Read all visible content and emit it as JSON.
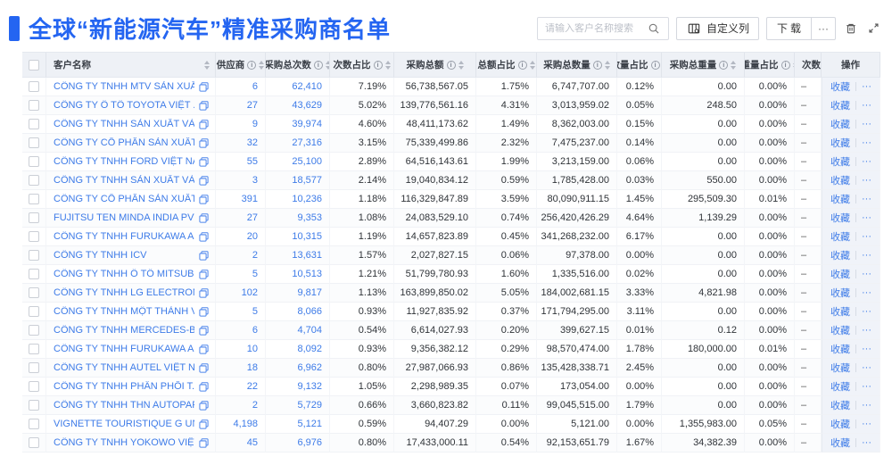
{
  "header": {
    "title": "全球“新能源汽车”精准采购商名单",
    "search_placeholder": "请输入客户名称搜索",
    "customize_columns_label": "自定义列",
    "download_label": "下载",
    "more_label": "···"
  },
  "colors": {
    "accent": "#2465F1",
    "link": "#3D7BE8",
    "header_bg": "#EEF1F6"
  },
  "table": {
    "columns": [
      {
        "key": "name",
        "label": "客户名称",
        "info": false,
        "sort": true
      },
      {
        "key": "supplier",
        "label": "供应商",
        "info": true,
        "sort": true
      },
      {
        "key": "purchase_count",
        "label": "采购总次数",
        "info": true,
        "sort": true
      },
      {
        "key": "count_pct",
        "label": "次数占比",
        "info": true,
        "sort": true
      },
      {
        "key": "amount",
        "label": "采购总额",
        "info": true,
        "sort": true
      },
      {
        "key": "amount_pct",
        "label": "总额占比",
        "info": true,
        "sort": true
      },
      {
        "key": "quantity",
        "label": "采购总数量",
        "info": true,
        "sort": true
      },
      {
        "key": "quantity_pct",
        "label": "数量占比",
        "info": true,
        "sort": true
      },
      {
        "key": "weight",
        "label": "采购总重量",
        "info": true,
        "sort": true
      },
      {
        "key": "weight_pct",
        "label": "重量占比",
        "info": true,
        "sort": true
      },
      {
        "key": "trend",
        "label": "次数趋势",
        "info": false,
        "sort": false
      },
      {
        "key": "actions",
        "label": "操作",
        "info": false,
        "sort": false
      }
    ],
    "actions": {
      "favorite": "收藏",
      "more": "···"
    },
    "rows": [
      {
        "name": "CÔNG TY TNHH MTV SẢN XUẤ...",
        "supplier": "6",
        "purchase_count": "62,410",
        "count_pct": "7.19%",
        "amount": "56,738,567.05",
        "amount_pct": "1.75%",
        "quantity": "6,747,707.00",
        "quantity_pct": "0.12%",
        "weight": "0.00",
        "weight_pct": "0.00%",
        "trend": "–"
      },
      {
        "name": "CÔNG TY Ô TÔ TOYOTA VIỆT ...",
        "supplier": "27",
        "purchase_count": "43,629",
        "count_pct": "5.02%",
        "amount": "139,776,561.16",
        "amount_pct": "4.31%",
        "quantity": "3,013,959.02",
        "quantity_pct": "0.05%",
        "weight": "248.50",
        "weight_pct": "0.00%",
        "trend": "–"
      },
      {
        "name": "CÔNG TY TNHH SẢN XUẤT VÀ ...",
        "supplier": "9",
        "purchase_count": "39,974",
        "count_pct": "4.60%",
        "amount": "48,411,173.62",
        "amount_pct": "1.49%",
        "quantity": "8,362,003.00",
        "quantity_pct": "0.15%",
        "weight": "0.00",
        "weight_pct": "0.00%",
        "trend": "–"
      },
      {
        "name": "CÔNG TY CỔ PHẦN SẢN XUẤT...",
        "supplier": "32",
        "purchase_count": "27,316",
        "count_pct": "3.15%",
        "amount": "75,339,499.86",
        "amount_pct": "2.32%",
        "quantity": "7,475,237.00",
        "quantity_pct": "0.14%",
        "weight": "0.00",
        "weight_pct": "0.00%",
        "trend": "–"
      },
      {
        "name": "CÔNG TY TNHH FORD VIỆT NAM",
        "supplier": "55",
        "purchase_count": "25,100",
        "count_pct": "2.89%",
        "amount": "64,516,143.61",
        "amount_pct": "1.99%",
        "quantity": "3,213,159.00",
        "quantity_pct": "0.06%",
        "weight": "0.00",
        "weight_pct": "0.00%",
        "trend": "–"
      },
      {
        "name": "CÔNG TY TNHH SẢN XUẤT VÀ ...",
        "supplier": "3",
        "purchase_count": "18,577",
        "count_pct": "2.14%",
        "amount": "19,040,834.12",
        "amount_pct": "0.59%",
        "quantity": "1,785,428.00",
        "quantity_pct": "0.03%",
        "weight": "550.00",
        "weight_pct": "0.00%",
        "trend": "–"
      },
      {
        "name": "CÔNG TY CỔ PHẦN SẢN XUẤT...",
        "supplier": "391",
        "purchase_count": "10,236",
        "count_pct": "1.18%",
        "amount": "116,329,847.89",
        "amount_pct": "3.59%",
        "quantity": "80,090,911.15",
        "quantity_pct": "1.45%",
        "weight": "295,509.30",
        "weight_pct": "0.01%",
        "trend": "–"
      },
      {
        "name": "FUJITSU TEN MINDA INDIA PVT...",
        "supplier": "27",
        "purchase_count": "9,353",
        "count_pct": "1.08%",
        "amount": "24,083,529.10",
        "amount_pct": "0.74%",
        "quantity": "256,420,426.29",
        "quantity_pct": "4.64%",
        "weight": "1,139.29",
        "weight_pct": "0.00%",
        "trend": "–"
      },
      {
        "name": "CÔNG TY TNHH FURUKAWA A...",
        "supplier": "20",
        "purchase_count": "10,315",
        "count_pct": "1.19%",
        "amount": "14,657,823.89",
        "amount_pct": "0.45%",
        "quantity": "341,268,232.00",
        "quantity_pct": "6.17%",
        "weight": "0.00",
        "weight_pct": "0.00%",
        "trend": "–"
      },
      {
        "name": "CÔNG TY TNHH ICV",
        "supplier": "2",
        "purchase_count": "13,631",
        "count_pct": "1.57%",
        "amount": "2,027,827.15",
        "amount_pct": "0.06%",
        "quantity": "97,378.00",
        "quantity_pct": "0.00%",
        "weight": "0.00",
        "weight_pct": "0.00%",
        "trend": "–"
      },
      {
        "name": "CÔNG TY TNHH Ô TÔ MITSUBI...",
        "supplier": "5",
        "purchase_count": "10,513",
        "count_pct": "1.21%",
        "amount": "51,799,780.93",
        "amount_pct": "1.60%",
        "quantity": "1,335,516.00",
        "quantity_pct": "0.02%",
        "weight": "0.00",
        "weight_pct": "0.00%",
        "trend": "–"
      },
      {
        "name": "CÔNG TY TNHH LG ELECTRON...",
        "supplier": "102",
        "purchase_count": "9,817",
        "count_pct": "1.13%",
        "amount": "163,899,850.02",
        "amount_pct": "5.05%",
        "quantity": "184,002,681.15",
        "quantity_pct": "3.33%",
        "weight": "4,821.98",
        "weight_pct": "0.00%",
        "trend": "–"
      },
      {
        "name": "CÔNG TY TNHH MỘT THÀNH V...",
        "supplier": "5",
        "purchase_count": "8,066",
        "count_pct": "0.93%",
        "amount": "11,927,835.92",
        "amount_pct": "0.37%",
        "quantity": "171,794,295.00",
        "quantity_pct": "3.11%",
        "weight": "0.00",
        "weight_pct": "0.00%",
        "trend": "–"
      },
      {
        "name": "CÔNG TY TNHH MERCEDES-B...",
        "supplier": "6",
        "purchase_count": "4,704",
        "count_pct": "0.54%",
        "amount": "6,614,027.93",
        "amount_pct": "0.20%",
        "quantity": "399,627.15",
        "quantity_pct": "0.01%",
        "weight": "0.12",
        "weight_pct": "0.00%",
        "trend": "–"
      },
      {
        "name": "CÔNG TY TNHH FURUKAWA A...",
        "supplier": "10",
        "purchase_count": "8,092",
        "count_pct": "0.93%",
        "amount": "9,356,382.12",
        "amount_pct": "0.29%",
        "quantity": "98,570,474.00",
        "quantity_pct": "1.78%",
        "weight": "180,000.00",
        "weight_pct": "0.01%",
        "trend": "–"
      },
      {
        "name": "CÔNG TY TNHH AUTEL VIỆT N...",
        "supplier": "18",
        "purchase_count": "6,962",
        "count_pct": "0.80%",
        "amount": "27,987,066.93",
        "amount_pct": "0.86%",
        "quantity": "135,428,338.71",
        "quantity_pct": "2.45%",
        "weight": "0.00",
        "weight_pct": "0.00%",
        "trend": "–"
      },
      {
        "name": "CÔNG TY TNHH PHÂN PHỐI T...",
        "supplier": "22",
        "purchase_count": "9,132",
        "count_pct": "1.05%",
        "amount": "2,298,989.35",
        "amount_pct": "0.07%",
        "quantity": "173,054.00",
        "quantity_pct": "0.00%",
        "weight": "0.00",
        "weight_pct": "0.00%",
        "trend": "–"
      },
      {
        "name": "CÔNG TY TNHH THN AUTOPAR...",
        "supplier": "2",
        "purchase_count": "5,729",
        "count_pct": "0.66%",
        "amount": "3,660,823.82",
        "amount_pct": "0.11%",
        "quantity": "99,045,515.00",
        "quantity_pct": "1.79%",
        "weight": "0.00",
        "weight_pct": "0.00%",
        "trend": "–"
      },
      {
        "name": "VIGNETTE TOURISTIQUE G UNI...",
        "supplier": "4,198",
        "purchase_count": "5,121",
        "count_pct": "0.59%",
        "amount": "94,407.29",
        "amount_pct": "0.00%",
        "quantity": "5,121.00",
        "quantity_pct": "0.00%",
        "weight": "1,355,983.00",
        "weight_pct": "0.05%",
        "trend": "–"
      },
      {
        "name": "CÔNG TY TNHH YOKOWO VIỆT...",
        "supplier": "45",
        "purchase_count": "6,976",
        "count_pct": "0.80%",
        "amount": "17,433,000.11",
        "amount_pct": "0.54%",
        "quantity": "92,153,651.79",
        "quantity_pct": "1.67%",
        "weight": "34,382.39",
        "weight_pct": "0.00%",
        "trend": "–"
      }
    ]
  }
}
